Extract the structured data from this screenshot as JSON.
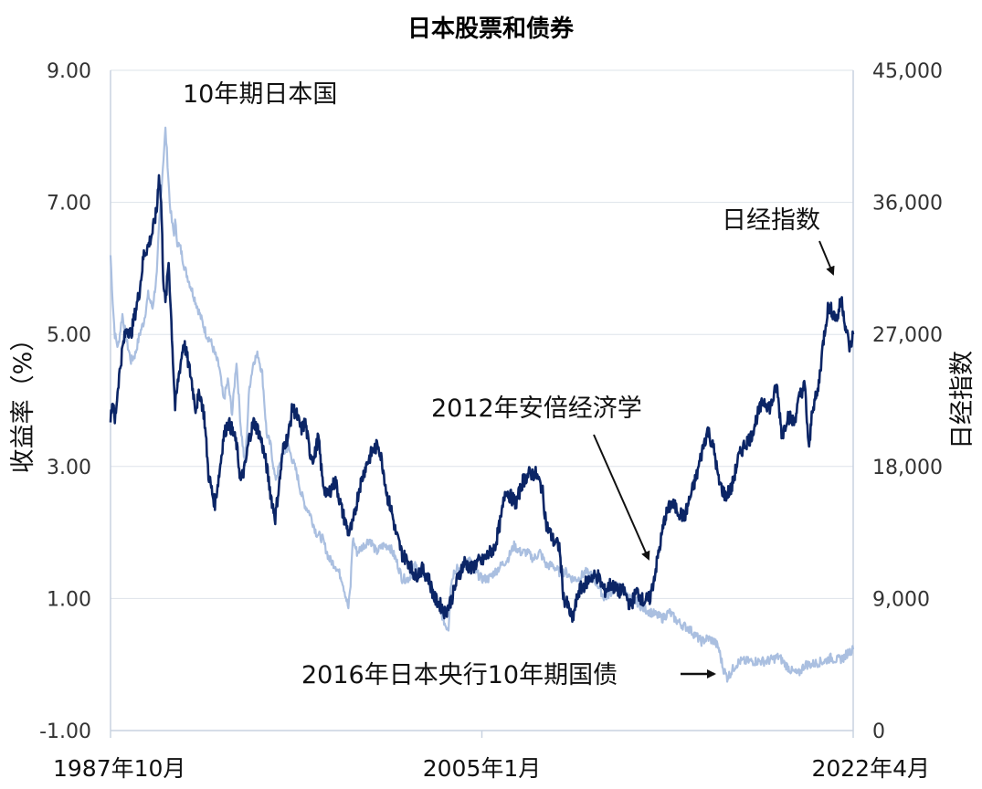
{
  "chart_data": {
    "type": "line",
    "title": "日本股票和债券",
    "ylabel_left": "收益率（%）",
    "ylabel_right": "日经指数",
    "ylim_left": [
      -1.0,
      9.0
    ],
    "ylim_right": [
      0,
      45000
    ],
    "yticks_left": [
      "9.00",
      "7.00",
      "5.00",
      "3.00",
      "1.00",
      "-1.00"
    ],
    "yticks_right": [
      "45,000",
      "36,000",
      "27,000",
      "18,000",
      "9,000",
      "0"
    ],
    "xlim": [
      1987.75,
      2022.25
    ],
    "xticks": [
      {
        "label": "1987年10月",
        "x": 1987.75
      },
      {
        "label": "2005年1月",
        "x": 2005.0
      },
      {
        "label": "2022年4月",
        "x": 2022.25
      }
    ],
    "grid": true,
    "colors": {
      "nikkei": "#0b2566",
      "jgb": "#aabfe0",
      "grid": "#dde3ea",
      "axis": "#c8d2e0"
    },
    "annotations": {
      "jgb_label": "10年期日本国",
      "nikkei_label": "日经指数",
      "abenomics": "2012年安倍经济学",
      "boj": "2016年日本央行10年期国债"
    },
    "series": [
      {
        "name": "10年期日本国",
        "axis": "left",
        "color": "#aabfe0",
        "x": [
          1987.75,
          1987.85,
          1987.95,
          1988.1,
          1988.3,
          1988.5,
          1988.7,
          1988.9,
          1989.1,
          1989.3,
          1989.5,
          1989.7,
          1989.9,
          1990.0,
          1990.15,
          1990.3,
          1990.4,
          1990.5,
          1990.6,
          1990.7,
          1990.75,
          1990.85,
          1991.0,
          1991.2,
          1991.4,
          1991.6,
          1991.8,
          1992.0,
          1992.2,
          1992.4,
          1992.6,
          1992.8,
          1993.0,
          1993.2,
          1993.4,
          1993.6,
          1993.8,
          1994.0,
          1994.2,
          1994.4,
          1994.6,
          1994.8,
          1995.0,
          1995.2,
          1995.4,
          1995.6,
          1995.8,
          1996.0,
          1996.2,
          1996.4,
          1996.6,
          1996.8,
          1997.0,
          1997.3,
          1997.6,
          1997.9,
          1998.2,
          1998.5,
          1998.8,
          1998.9,
          1999.0,
          1999.2,
          1999.5,
          1999.8,
          2000.1,
          2000.4,
          2000.7,
          2001.0,
          2001.3,
          2001.6,
          2001.9,
          2002.2,
          2002.5,
          2002.8,
          2003.1,
          2003.3,
          2003.45,
          2003.55,
          2003.7,
          2003.85,
          2004.0,
          2004.2,
          2004.4,
          2004.7,
          2005.0,
          2005.3,
          2005.6,
          2005.9,
          2006.2,
          2006.5,
          2006.8,
          2007.1,
          2007.4,
          2007.7,
          2008.0,
          2008.3,
          2008.6,
          2008.9,
          2009.2,
          2009.5,
          2009.8,
          2010.1,
          2010.4,
          2010.7,
          2011.0,
          2011.3,
          2011.6,
          2011.9,
          2012.2,
          2012.5,
          2012.8,
          2013.1,
          2013.4,
          2013.7,
          2014.0,
          2014.3,
          2014.6,
          2014.9,
          2015.2,
          2015.5,
          2015.8,
          2016.0,
          2016.2,
          2016.4,
          2016.6,
          2016.8,
          2017.0,
          2017.3,
          2017.6,
          2017.9,
          2018.2,
          2018.5,
          2018.8,
          2019.1,
          2019.4,
          2019.7,
          2020.0,
          2020.3,
          2020.6,
          2020.9,
          2021.2,
          2021.5,
          2021.8,
          2022.0,
          2022.25
        ],
        "y": [
          6.2,
          5.5,
          5.0,
          4.8,
          5.3,
          4.9,
          4.6,
          4.7,
          5.0,
          5.2,
          5.6,
          5.4,
          5.9,
          6.6,
          7.4,
          8.1,
          7.6,
          7.0,
          6.7,
          6.5,
          6.7,
          6.4,
          6.3,
          6.0,
          5.8,
          5.6,
          5.4,
          5.2,
          5.0,
          4.9,
          4.7,
          4.5,
          4.0,
          4.3,
          3.8,
          4.6,
          3.6,
          3.0,
          4.2,
          4.6,
          4.7,
          4.4,
          3.5,
          3.3,
          2.8,
          3.0,
          3.2,
          3.3,
          3.1,
          2.9,
          2.6,
          2.4,
          2.3,
          2.0,
          1.9,
          1.6,
          1.5,
          1.3,
          0.85,
          1.2,
          1.9,
          1.7,
          1.8,
          1.9,
          1.7,
          1.8,
          1.8,
          1.6,
          1.3,
          1.3,
          1.5,
          1.4,
          1.3,
          1.0,
          0.8,
          0.6,
          0.55,
          1.2,
          1.4,
          1.5,
          1.4,
          1.5,
          1.6,
          1.4,
          1.3,
          1.3,
          1.4,
          1.5,
          1.6,
          1.8,
          1.7,
          1.7,
          1.6,
          1.7,
          1.5,
          1.5,
          1.4,
          1.4,
          1.3,
          1.3,
          1.4,
          1.35,
          1.2,
          1.0,
          1.1,
          1.2,
          1.1,
          1.0,
          0.95,
          0.85,
          0.8,
          0.75,
          0.7,
          0.8,
          0.68,
          0.6,
          0.55,
          0.45,
          0.35,
          0.4,
          0.35,
          0.25,
          -0.05,
          -0.2,
          -0.1,
          0.0,
          0.05,
          0.05,
          0.05,
          0.05,
          0.05,
          0.08,
          0.12,
          0.0,
          -0.1,
          -0.15,
          0.0,
          0.0,
          0.03,
          0.05,
          0.1,
          0.07,
          0.1,
          0.18,
          0.23
        ]
      },
      {
        "name": "日经指数",
        "axis": "right",
        "color": "#0b2566",
        "x": [
          1987.75,
          1987.85,
          1987.95,
          1988.1,
          1988.3,
          1988.5,
          1988.7,
          1988.9,
          1989.1,
          1989.3,
          1989.5,
          1989.7,
          1989.9,
          1990.0,
          1990.1,
          1990.2,
          1990.3,
          1990.45,
          1990.6,
          1990.75,
          1990.9,
          1991.0,
          1991.15,
          1991.3,
          1991.5,
          1991.7,
          1991.9,
          1992.1,
          1992.3,
          1992.5,
          1992.6,
          1992.8,
          1993.0,
          1993.2,
          1993.4,
          1993.6,
          1993.8,
          1994.0,
          1994.2,
          1994.4,
          1994.6,
          1994.8,
          1995.0,
          1995.2,
          1995.4,
          1995.6,
          1995.8,
          1996.0,
          1996.2,
          1996.4,
          1996.6,
          1996.8,
          1997.0,
          1997.2,
          1997.4,
          1997.6,
          1997.8,
          1998.0,
          1998.2,
          1998.5,
          1998.8,
          1999.0,
          1999.3,
          1999.6,
          1999.9,
          2000.2,
          2000.4,
          2000.6,
          2000.8,
          2001.0,
          2001.3,
          2001.6,
          2001.9,
          2002.2,
          2002.5,
          2002.8,
          2003.1,
          2003.3,
          2003.6,
          2003.9,
          2004.2,
          2004.5,
          2004.8,
          2005.0,
          2005.3,
          2005.6,
          2005.9,
          2006.1,
          2006.3,
          2006.6,
          2006.9,
          2007.2,
          2007.5,
          2007.8,
          2008.0,
          2008.3,
          2008.6,
          2008.8,
          2009.0,
          2009.2,
          2009.5,
          2009.8,
          2010.1,
          2010.4,
          2010.7,
          2011.0,
          2011.3,
          2011.6,
          2011.9,
          2012.2,
          2012.5,
          2012.8,
          2012.95,
          2013.2,
          2013.5,
          2013.8,
          2014.1,
          2014.4,
          2014.7,
          2015.0,
          2015.3,
          2015.5,
          2015.8,
          2016.0,
          2016.3,
          2016.6,
          2016.9,
          2017.2,
          2017.5,
          2017.8,
          2018.1,
          2018.4,
          2018.7,
          2018.95,
          2019.2,
          2019.5,
          2019.8,
          2020.0,
          2020.2,
          2020.35,
          2020.6,
          2020.9,
          2021.1,
          2021.3,
          2021.5,
          2021.7,
          2021.9,
          2022.1,
          2022.25
        ],
        "y": [
          21500,
          22500,
          21000,
          23500,
          26000,
          27500,
          27000,
          28500,
          30000,
          32500,
          33000,
          34000,
          35500,
          38000,
          36000,
          31000,
          29000,
          32000,
          27000,
          22000,
          24000,
          25000,
          26500,
          25500,
          24000,
          22000,
          23000,
          21500,
          17500,
          16000,
          15500,
          17500,
          20000,
          21000,
          20500,
          19500,
          17000,
          18000,
          20000,
          21000,
          20500,
          19500,
          18000,
          16000,
          14500,
          17000,
          19500,
          20000,
          22000,
          21500,
          20500,
          21000,
          19000,
          18500,
          20000,
          17000,
          16000,
          16500,
          17000,
          15000,
          13500,
          14000,
          16500,
          18000,
          19000,
          19500,
          18000,
          16000,
          15000,
          13500,
          12000,
          11500,
          10500,
          11000,
          10500,
          9000,
          8500,
          8000,
          9000,
          10500,
          11500,
          11000,
          11500,
          11500,
          12000,
          12500,
          14500,
          16500,
          16000,
          15500,
          17000,
          17500,
          17500,
          16500,
          14000,
          13000,
          12500,
          9000,
          8500,
          7500,
          9500,
          10000,
          10500,
          10500,
          9500,
          10000,
          9500,
          9500,
          8500,
          9500,
          8800,
          9000,
          10000,
          12000,
          14500,
          15500,
          15000,
          14500,
          16000,
          17500,
          19500,
          20500,
          19000,
          17000,
          16000,
          16500,
          18500,
          19500,
          20000,
          21500,
          22500,
          22000,
          23500,
          20000,
          21500,
          21000,
          23000,
          23500,
          19000,
          22000,
          23000,
          27000,
          29000,
          28500,
          28000,
          29500,
          27500,
          26000,
          27000
        ]
      }
    ]
  }
}
